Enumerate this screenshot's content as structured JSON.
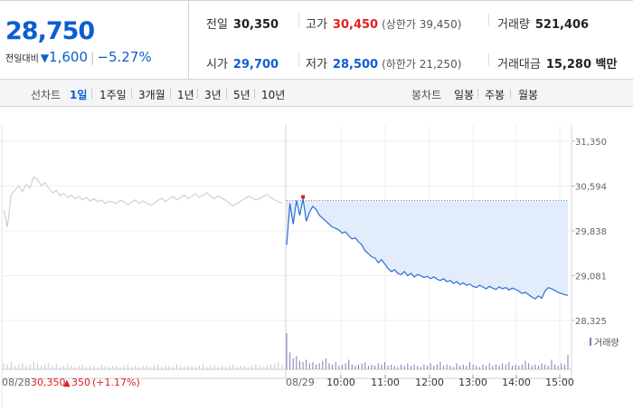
{
  "header": {
    "price": "28,750",
    "change_label": "전일대비",
    "change_arrow": "▼",
    "change_value": "1,600",
    "change_percent": "−5.27%",
    "prev_close": {
      "label": "전일",
      "value": "30,350"
    },
    "high": {
      "label": "고가",
      "value": "30,450",
      "sub": "(상한가 39,450)"
    },
    "volume": {
      "label": "거래량",
      "value": "521,406"
    },
    "open": {
      "label": "시가",
      "value": "29,700"
    },
    "low": {
      "label": "저가",
      "value": "28,500",
      "sub": "(하한가 21,250)"
    },
    "amount": {
      "label": "거래대금",
      "value": "15,280 백만"
    }
  },
  "tabs": {
    "line_label": "선차트",
    "line_tabs": [
      "1일",
      "1주일",
      "3개월",
      "1년",
      "3년",
      "5년",
      "10년"
    ],
    "line_active": "1일",
    "candle_label": "봉차트",
    "candle_tabs": [
      "일봉",
      "주봉",
      "월봉"
    ]
  },
  "colors": {
    "today_line": "#2a6fd6",
    "today_fill": "#e2ecfa",
    "prev_line": "#c9c9c9",
    "down": "#0d5ecf",
    "up": "#e02020",
    "volume_bar": "#8a76b8"
  },
  "chart_data": {
    "type": "line",
    "y_ticks": [
      "31,350",
      "30,594",
      "29,838",
      "29,081",
      "28,325"
    ],
    "ylim": [
      28325,
      31350
    ],
    "prev_day": {
      "date": "08/28",
      "close": "30,350",
      "change_arrow": "▲",
      "change": "350",
      "change_percent": "(+1.17%)",
      "values": [
        30200,
        29900,
        30450,
        30520,
        30600,
        30500,
        30620,
        30560,
        30750,
        30700,
        30600,
        30650,
        30550,
        30480,
        30520,
        30430,
        30470,
        30400,
        30440,
        30380,
        30420,
        30360,
        30400,
        30340,
        30380,
        30330,
        30360,
        30300,
        30340,
        30320,
        30300,
        30350,
        30330,
        30280,
        30320,
        30360,
        30300,
        30340,
        30310,
        30270,
        30300,
        30350,
        30390,
        30330,
        30380,
        30420,
        30360,
        30400,
        30440,
        30380,
        30420,
        30460,
        30400,
        30440,
        30480,
        30420,
        30380,
        30430,
        30390,
        30350,
        30300,
        30260,
        30300,
        30340,
        30380,
        30420,
        30400,
        30360,
        30380,
        30420,
        30450,
        30400,
        30360,
        30330,
        30300
      ]
    },
    "today": {
      "date": "08/29",
      "time_ticks": [
        "10:00",
        "11:00",
        "12:00",
        "13:00",
        "14:00",
        "15:00"
      ],
      "open_ref": 30350,
      "values": [
        29600,
        30300,
        29950,
        30350,
        30100,
        30380,
        30000,
        30150,
        30250,
        30200,
        30100,
        30050,
        30000,
        29950,
        29900,
        29880,
        29850,
        29800,
        29820,
        29750,
        29700,
        29720,
        29650,
        29600,
        29500,
        29450,
        29400,
        29380,
        29300,
        29350,
        29280,
        29200,
        29150,
        29180,
        29120,
        29100,
        29150,
        29080,
        29120,
        29060,
        29100,
        29080,
        29050,
        29070,
        29030,
        29060,
        29020,
        29000,
        29030,
        28980,
        29000,
        28950,
        28980,
        28930,
        28960,
        28920,
        28940,
        28900,
        28880,
        28920,
        28890,
        28860,
        28900,
        28870,
        28850,
        28890,
        28860,
        28880,
        28840,
        28870,
        28850,
        28820,
        28780,
        28800,
        28760,
        28720,
        28690,
        28740,
        28700,
        28820,
        28880,
        28860,
        28830,
        28800,
        28780,
        28760,
        28750
      ]
    },
    "volume_label": "거래량",
    "volume": {
      "prev": [
        5,
        4,
        6,
        3,
        4,
        5,
        3,
        4,
        6,
        5,
        3,
        4,
        5,
        3,
        4,
        2,
        3,
        4,
        3,
        2,
        3,
        4,
        2,
        3,
        3,
        2,
        4,
        3,
        2,
        3,
        3,
        2,
        3,
        4,
        2,
        3,
        2,
        3,
        3,
        2,
        3,
        4,
        2,
        3,
        3,
        2,
        4,
        3,
        2,
        3,
        3,
        2,
        3,
        4,
        2,
        3,
        3,
        2,
        3,
        2,
        3,
        4,
        2,
        3,
        3,
        2,
        3,
        4,
        3,
        2,
        3,
        4,
        5,
        6,
        4
      ],
      "today": [
        30,
        14,
        9,
        11,
        7,
        6,
        8,
        5,
        6,
        4,
        5,
        7,
        9,
        5,
        4,
        6,
        3,
        4,
        5,
        8,
        4,
        3,
        4,
        5,
        6,
        3,
        4,
        3,
        5,
        4,
        6,
        3,
        4,
        3,
        2,
        4,
        3,
        5,
        3,
        4,
        3,
        2,
        4,
        3,
        5,
        3,
        4,
        6,
        3,
        4,
        3,
        2,
        5,
        3,
        4,
        3,
        6,
        4,
        3,
        2,
        4,
        3,
        5,
        3,
        4,
        3,
        5,
        4,
        6,
        3,
        4,
        3,
        4,
        7,
        5,
        3,
        4,
        3,
        5,
        4,
        3,
        8,
        4,
        3,
        5,
        4,
        12
      ]
    }
  }
}
